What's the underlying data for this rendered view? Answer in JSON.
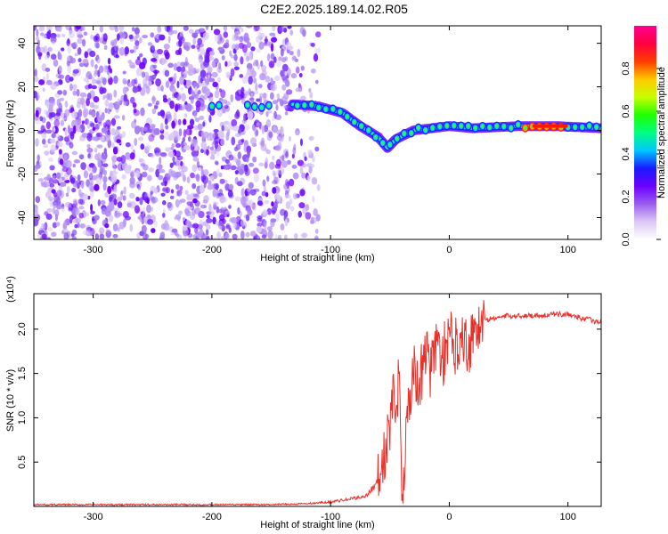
{
  "title": "C2E2.2025.189.14.02.R05",
  "chart_data": [
    {
      "type": "heatmap",
      "title": "C2E2.2025.189.14.02.R05",
      "xlabel": "Height of straight line (km)",
      "ylabel": "Frequency (Hz)",
      "xlim": [
        -350,
        128
      ],
      "ylim": [
        -50,
        48
      ],
      "x_ticks": [
        -300,
        -200,
        -100,
        0,
        100
      ],
      "y_ticks": [
        -40,
        -20,
        0,
        20,
        40
      ],
      "colorbar": {
        "label": "Normalized spectral amplitude",
        "range": [
          0,
          1
        ],
        "ticks": [
          0.0,
          0.2,
          0.4,
          0.6,
          0.8
        ],
        "colors": [
          "#ffffff",
          "#dcc8f5",
          "#9a5cf0",
          "#6a00ff",
          "#1a1aff",
          "#00c8ff",
          "#00ff80",
          "#20ff00",
          "#c8ff00",
          "#ffc800",
          "#ff3c00",
          "#ff0040",
          "#ff0090"
        ]
      },
      "features": [
        {
          "name": "broadband noise",
          "x_range": [
            -350,
            -130
          ],
          "y_range": [
            -50,
            48
          ]
        },
        {
          "name": "signal ridge",
          "points": [
            [
              -200,
              11
            ],
            [
              -160,
              11
            ],
            [
              -130,
              12
            ],
            [
              -110,
              11
            ],
            [
              -90,
              8
            ],
            [
              -75,
              2
            ],
            [
              -60,
              -3
            ],
            [
              -52,
              -8
            ],
            [
              -45,
              -4
            ],
            [
              -30,
              0
            ],
            [
              -15,
              1
            ],
            [
              0,
              2
            ],
            [
              20,
              1
            ],
            [
              60,
              2
            ],
            [
              90,
              2
            ],
            [
              128,
              1
            ]
          ]
        }
      ]
    },
    {
      "type": "line",
      "xlabel": "Height of straight line (km)",
      "ylabel": "SNR (10 * v/v)",
      "y_multiplier": "(x10⁴)",
      "xlim": [
        -350,
        128
      ],
      "ylim": [
        0,
        2.4
      ],
      "x_ticks": [
        -300,
        -200,
        -100,
        0,
        100
      ],
      "y_ticks": [
        0.5,
        1.0,
        1.5,
        2.0
      ],
      "series": [
        {
          "color": "#e8302a",
          "points": [
            [
              -350,
              0.02
            ],
            [
              -300,
              0.02
            ],
            [
              -250,
              0.02
            ],
            [
              -200,
              0.02
            ],
            [
              -150,
              0.02
            ],
            [
              -120,
              0.03
            ],
            [
              -100,
              0.05
            ],
            [
              -80,
              0.09
            ],
            [
              -70,
              0.12
            ],
            [
              -60,
              0.28
            ],
            [
              -55,
              0.55
            ],
            [
              -50,
              0.9
            ],
            [
              -47,
              1.2
            ],
            [
              -45,
              1.0
            ],
            [
              -42,
              1.6
            ],
            [
              -40,
              0.2
            ],
            [
              -38,
              0.5
            ],
            [
              -35,
              1.1
            ],
            [
              -30,
              1.5
            ],
            [
              -25,
              1.4
            ],
            [
              -20,
              1.7
            ],
            [
              -15,
              1.55
            ],
            [
              -10,
              1.85
            ],
            [
              -5,
              1.7
            ],
            [
              0,
              1.9
            ],
            [
              5,
              1.8
            ],
            [
              10,
              2.0
            ],
            [
              15,
              1.8
            ],
            [
              20,
              1.95
            ],
            [
              25,
              2.05
            ],
            [
              30,
              2.1
            ],
            [
              40,
              2.13
            ],
            [
              50,
              2.15
            ],
            [
              60,
              2.15
            ],
            [
              80,
              2.16
            ],
            [
              100,
              2.17
            ],
            [
              110,
              2.13
            ],
            [
              120,
              2.1
            ],
            [
              128,
              2.07
            ]
          ]
        }
      ]
    }
  ]
}
